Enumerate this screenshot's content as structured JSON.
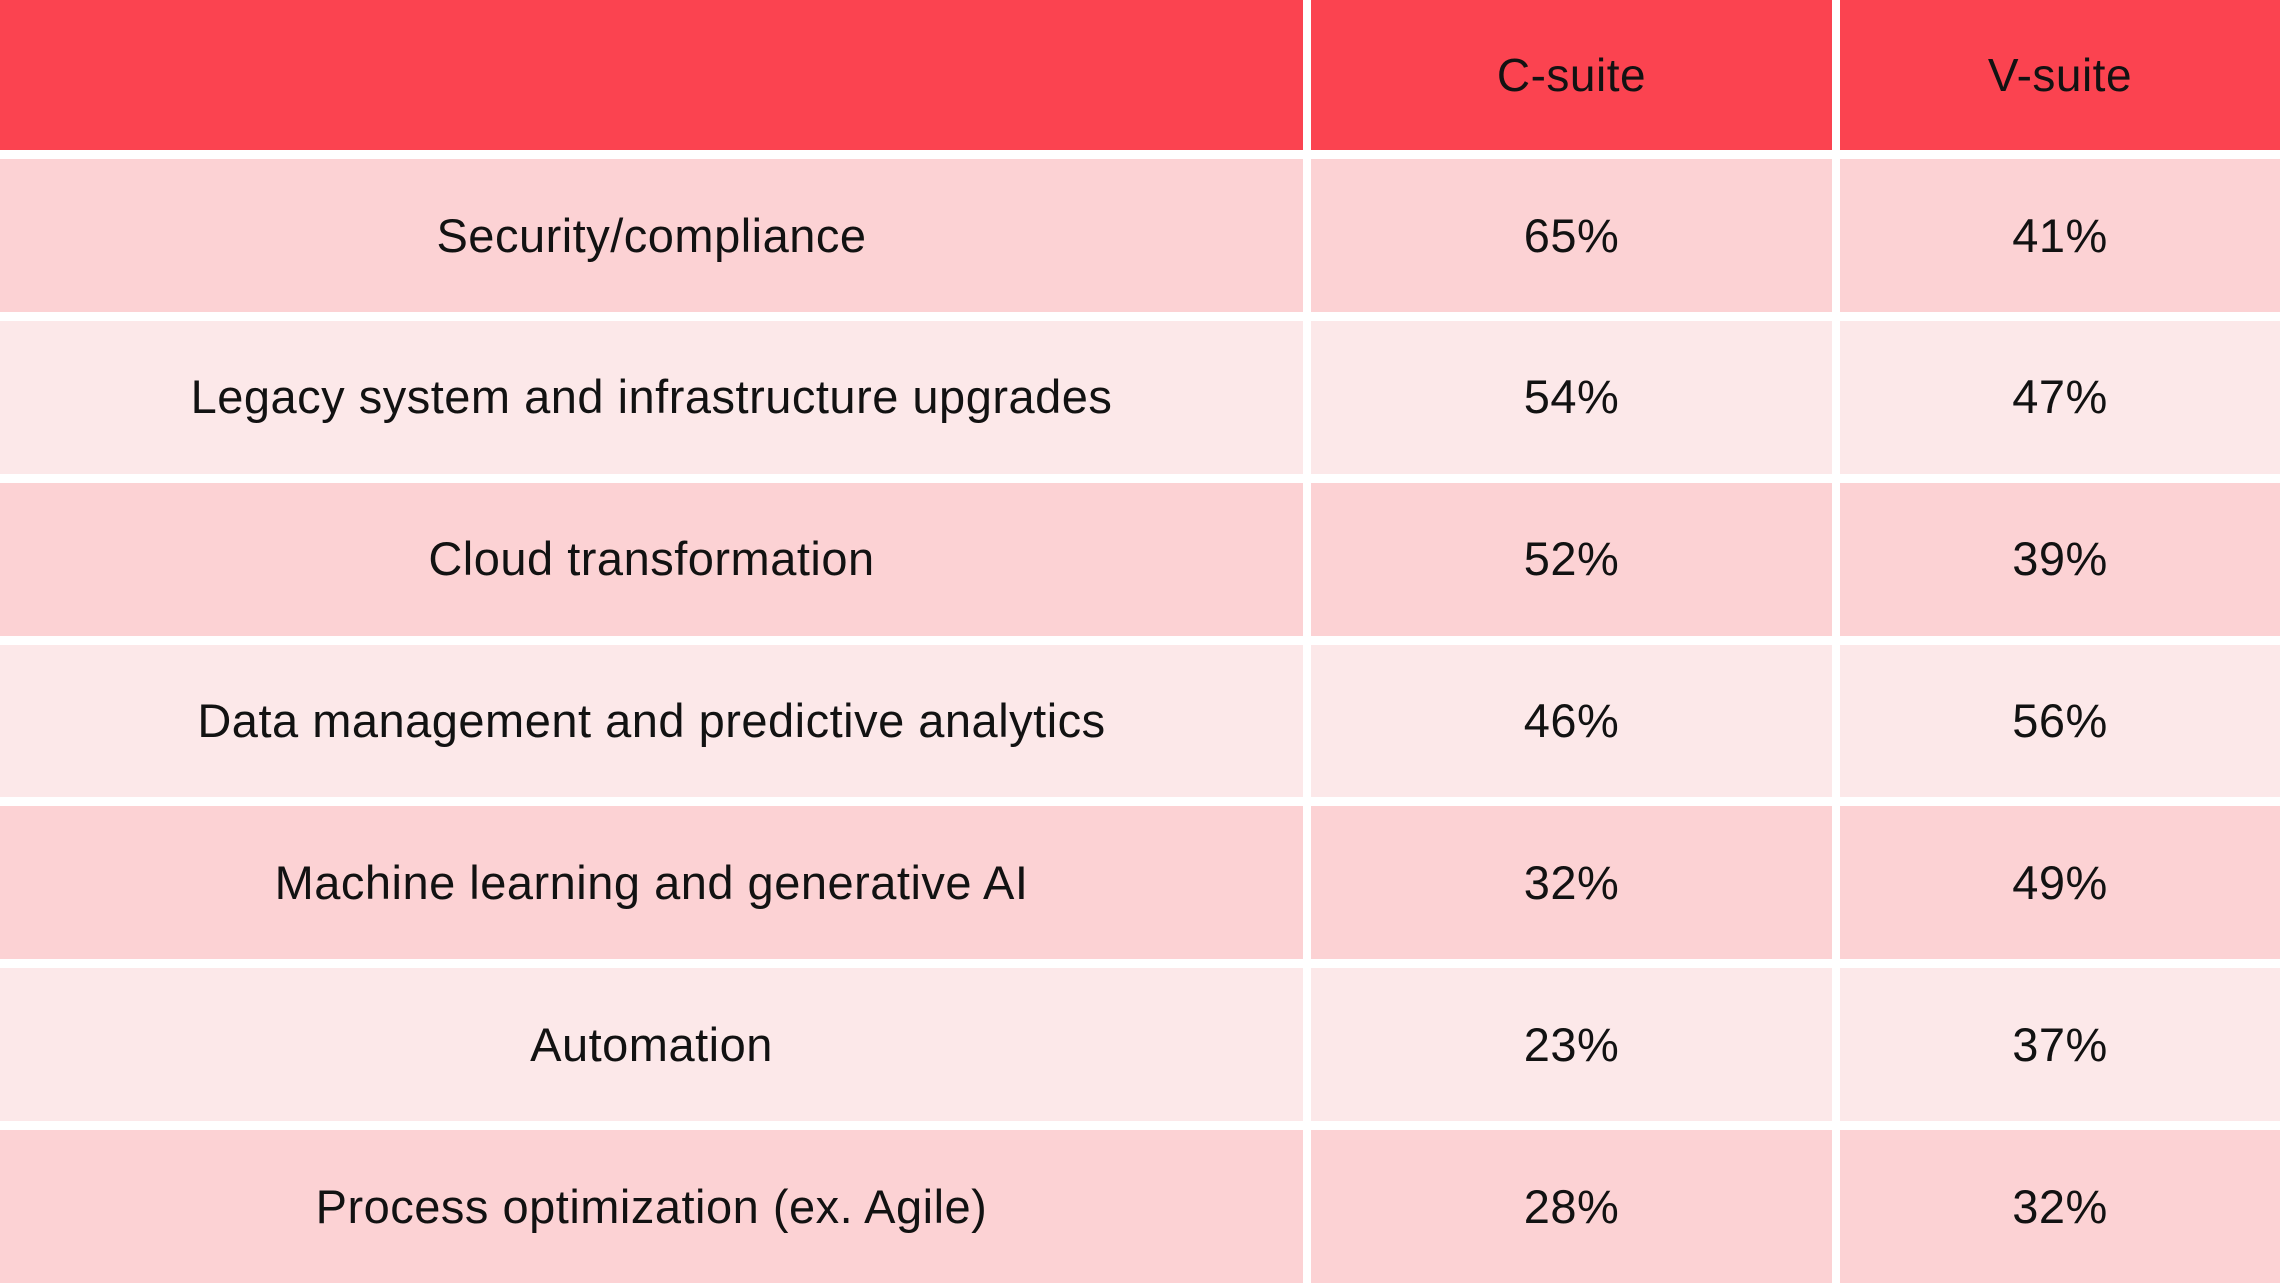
{
  "colors": {
    "header-red": "#fb4350",
    "row-dark": "#fcd2d4",
    "row-light": "#fce8e9",
    "text-color": "#121212",
    "gap-white": "#ffffff"
  },
  "table": {
    "corner_label": "",
    "columns": [
      "C-suite",
      "V-suite"
    ],
    "rows": [
      {
        "label": "Security/compliance",
        "c_suite": "65%",
        "v_suite": "41%"
      },
      {
        "label": "Legacy system and infrastructure upgrades",
        "c_suite": "54%",
        "v_suite": "47%"
      },
      {
        "label": "Cloud transformation",
        "c_suite": "52%",
        "v_suite": "39%"
      },
      {
        "label": "Data management and predictive analytics",
        "c_suite": "46%",
        "v_suite": "56%"
      },
      {
        "label": "Machine learning and generative AI",
        "c_suite": "32%",
        "v_suite": "49%"
      },
      {
        "label": "Automation",
        "c_suite": "23%",
        "v_suite": "37%"
      },
      {
        "label": "Process optimization (ex. Agile)",
        "c_suite": "28%",
        "v_suite": "32%"
      }
    ]
  },
  "chart_data": {
    "type": "table",
    "categories": [
      "Security/compliance",
      "Legacy system and infrastructure upgrades",
      "Cloud transformation",
      "Data management and predictive analytics",
      "Machine learning and generative AI",
      "Automation",
      "Process optimization (ex. Agile)"
    ],
    "series": [
      {
        "name": "C-suite",
        "values": [
          65,
          54,
          52,
          46,
          32,
          23,
          28
        ]
      },
      {
        "name": "V-suite",
        "values": [
          41,
          47,
          39,
          56,
          49,
          37,
          32
        ]
      }
    ],
    "value_unit": "%",
    "legend_position": "top",
    "grid": false
  }
}
